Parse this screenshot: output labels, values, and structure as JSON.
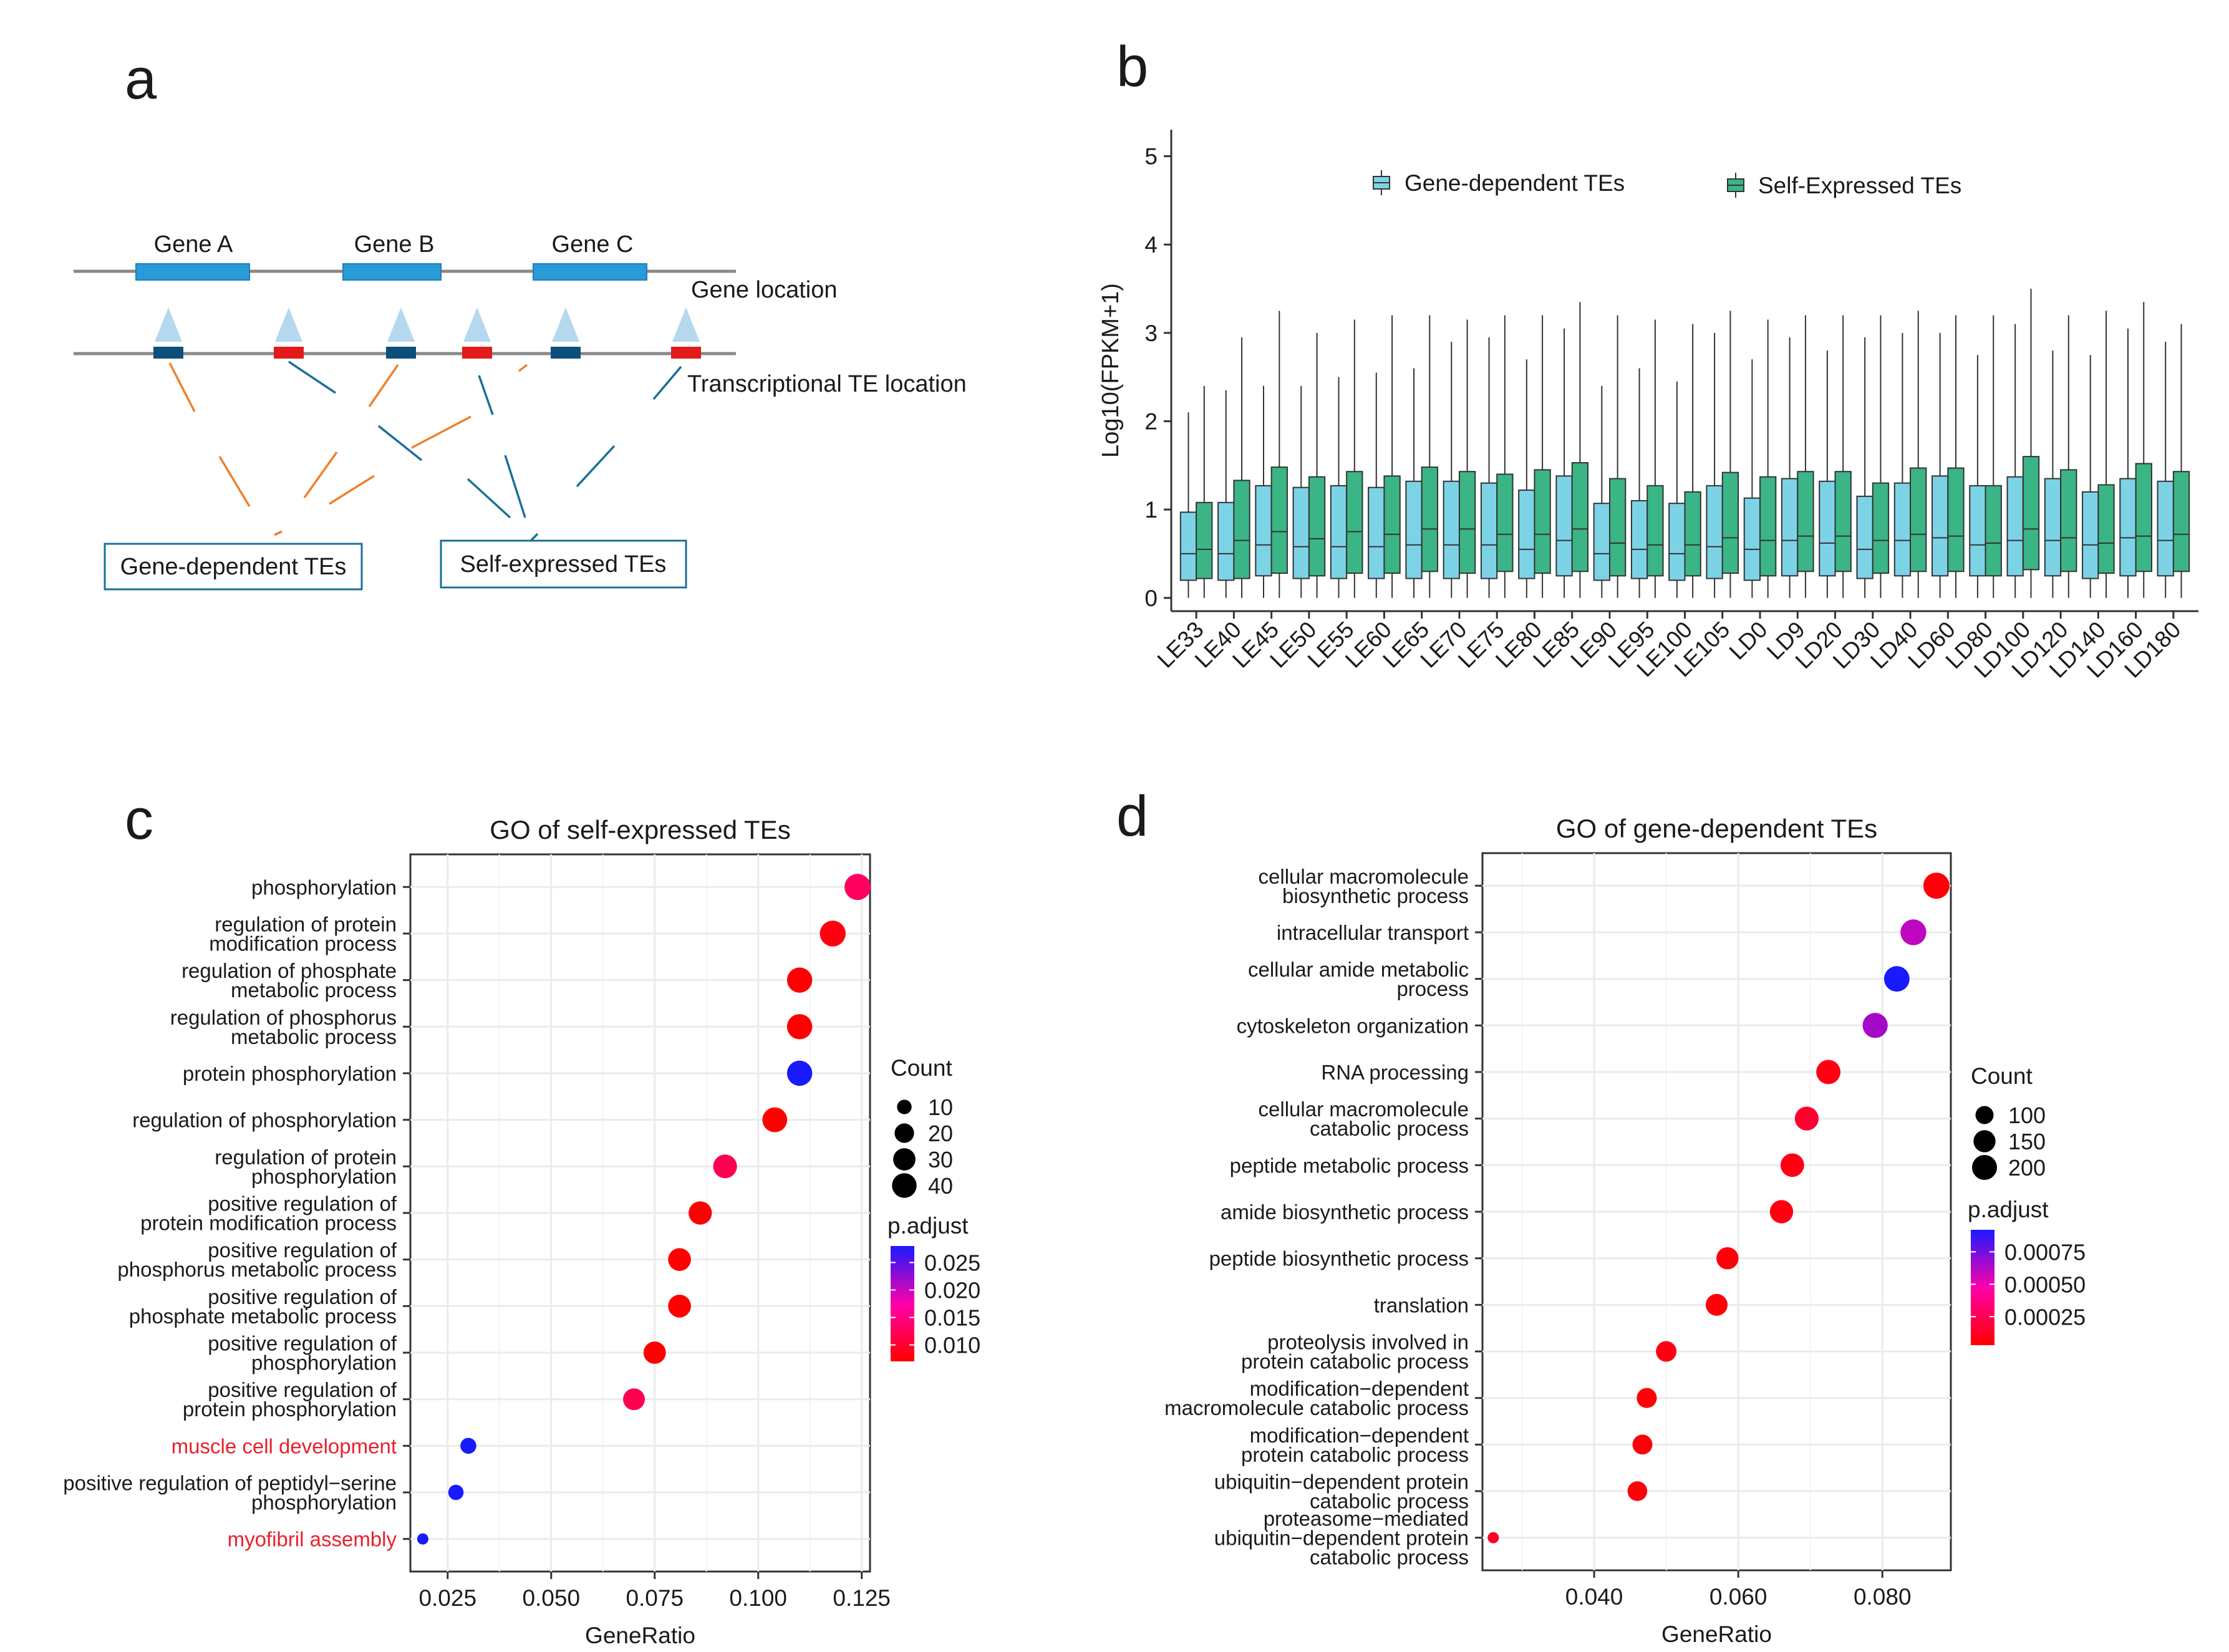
{
  "panel_labels": {
    "a": "a",
    "b": "b",
    "c": "c",
    "d": "d"
  },
  "colors": {
    "gene_box": "#2a9ad8",
    "te_blue": "#0b4f7a",
    "te_red": "#e21a1a",
    "triangle": "#b6d8ef",
    "orange_link": "#f07f2a",
    "blue_link": "#1a6f9a",
    "box_gene_dependent": "#7dd3e6",
    "box_self_expressed": "#3bb585",
    "red": "#ff0000",
    "blue": "#0000ff",
    "grid": "#ebebeb",
    "highlight_text": "#e8212c"
  },
  "diagram": {
    "genes": [
      "Gene A",
      "Gene B",
      "Gene C"
    ],
    "gene_location_label": "Gene location",
    "te_location_label": "Transcriptional TE location",
    "te_sites": [
      "blue",
      "red",
      "blue",
      "red",
      "blue",
      "red"
    ],
    "box_gene_dependent": "Gene-dependent TEs",
    "box_self_expressed": "Self-expressed TEs"
  },
  "chart_data": [
    {
      "id": "b",
      "type": "box",
      "title": "",
      "xlabel": "",
      "ylabel": "Log10(FPKM+1)",
      "ylim": [
        -0.15,
        5.3
      ],
      "yticks": [
        0,
        1,
        2,
        3,
        4,
        5
      ],
      "legend": [
        "Gene-dependent TEs",
        "Self-Expressed TEs"
      ],
      "categories": [
        "LE33",
        "LE40",
        "LE45",
        "LE50",
        "LE55",
        "LE60",
        "LE65",
        "LE70",
        "LE75",
        "LE80",
        "LE85",
        "LE90",
        "LE95",
        "LE100",
        "LE105",
        "LD0",
        "LD9",
        "LD20",
        "LD30",
        "LD40",
        "LD60",
        "LD80",
        "LD100",
        "LD120",
        "LD140",
        "LD160",
        "LD180"
      ],
      "series": [
        {
          "name": "Gene-dependent TEs",
          "q1": [
            0.2,
            0.2,
            0.25,
            0.22,
            0.22,
            0.22,
            0.22,
            0.22,
            0.22,
            0.22,
            0.25,
            0.2,
            0.22,
            0.2,
            0.22,
            0.2,
            0.25,
            0.25,
            0.22,
            0.25,
            0.25,
            0.25,
            0.25,
            0.25,
            0.22,
            0.25,
            0.25
          ],
          "median": [
            0.5,
            0.5,
            0.6,
            0.58,
            0.58,
            0.58,
            0.6,
            0.6,
            0.6,
            0.55,
            0.65,
            0.5,
            0.55,
            0.5,
            0.58,
            0.55,
            0.65,
            0.62,
            0.55,
            0.65,
            0.68,
            0.6,
            0.65,
            0.65,
            0.6,
            0.68,
            0.65
          ],
          "q3": [
            0.97,
            1.08,
            1.27,
            1.25,
            1.27,
            1.25,
            1.32,
            1.32,
            1.3,
            1.22,
            1.38,
            1.07,
            1.1,
            1.07,
            1.27,
            1.13,
            1.35,
            1.32,
            1.15,
            1.3,
            1.38,
            1.27,
            1.37,
            1.35,
            1.2,
            1.35,
            1.32
          ],
          "whisker_max": [
            2.1,
            2.35,
            2.4,
            2.4,
            2.5,
            2.55,
            2.6,
            2.9,
            2.95,
            2.7,
            3.05,
            2.4,
            2.6,
            2.45,
            3.0,
            2.7,
            2.95,
            2.8,
            2.95,
            3.0,
            3.0,
            2.75,
            3.1,
            2.8,
            2.75,
            3.05,
            2.9
          ]
        },
        {
          "name": "Self-Expressed TEs",
          "q1": [
            0.22,
            0.22,
            0.28,
            0.25,
            0.28,
            0.28,
            0.3,
            0.28,
            0.3,
            0.28,
            0.3,
            0.25,
            0.25,
            0.25,
            0.28,
            0.25,
            0.3,
            0.3,
            0.28,
            0.3,
            0.3,
            0.25,
            0.32,
            0.3,
            0.28,
            0.3,
            0.3
          ],
          "median": [
            0.55,
            0.65,
            0.75,
            0.67,
            0.75,
            0.72,
            0.78,
            0.78,
            0.72,
            0.72,
            0.78,
            0.62,
            0.6,
            0.6,
            0.68,
            0.65,
            0.7,
            0.7,
            0.65,
            0.72,
            0.7,
            0.62,
            0.78,
            0.68,
            0.62,
            0.7,
            0.72
          ],
          "q3": [
            1.08,
            1.33,
            1.48,
            1.37,
            1.43,
            1.38,
            1.48,
            1.43,
            1.4,
            1.45,
            1.53,
            1.35,
            1.27,
            1.2,
            1.42,
            1.37,
            1.43,
            1.43,
            1.3,
            1.47,
            1.47,
            1.27,
            1.6,
            1.45,
            1.28,
            1.52,
            1.43
          ],
          "whisker_max": [
            2.4,
            2.95,
            3.25,
            3.0,
            3.15,
            3.2,
            3.2,
            3.15,
            3.2,
            3.2,
            3.35,
            3.2,
            3.15,
            3.1,
            3.25,
            3.15,
            3.2,
            3.2,
            3.2,
            3.25,
            3.2,
            3.2,
            3.5,
            3.2,
            3.25,
            3.35,
            3.1
          ]
        }
      ]
    },
    {
      "id": "c",
      "type": "scatter",
      "title": "GO of self-expressed TEs",
      "xlabel": "GeneRatio",
      "ylabel": "",
      "xlim": [
        0.016,
        0.127
      ],
      "xticks": [
        0.025,
        0.05,
        0.075,
        0.1,
        0.125
      ],
      "xtick_labels": [
        "0.025",
        "0.050",
        "0.075",
        "0.100",
        "0.125"
      ],
      "terms": [
        "phosphorylation",
        "regulation of protein\nmodification process",
        "regulation of phosphate\nmetabolic process",
        "regulation of phosphorus\nmetabolic process",
        "protein phosphorylation",
        "regulation of phosphorylation",
        "regulation of protein\nphosphorylation",
        "positive regulation of\nprotein modification process",
        "positive regulation of\nphosphorus metabolic process",
        "positive regulation of\nphosphate metabolic process",
        "positive regulation of\nphosphorylation",
        "positive regulation of\nprotein phosphorylation",
        "muscle cell development",
        "positive regulation of peptidyl−serine\nphosphorylation",
        "myofibril assembly"
      ],
      "highlight_terms": [
        12,
        14
      ],
      "gene_ratio": [
        0.124,
        0.118,
        0.11,
        0.11,
        0.11,
        0.104,
        0.092,
        0.086,
        0.081,
        0.081,
        0.075,
        0.07,
        0.03,
        0.027,
        0.019
      ],
      "count": [
        48,
        46,
        43,
        43,
        43,
        41,
        36,
        34,
        32,
        32,
        30,
        28,
        12,
        11,
        8
      ],
      "p_adjust": [
        0.013,
        0.008,
        0.007,
        0.007,
        0.028,
        0.007,
        0.012,
        0.007,
        0.007,
        0.007,
        0.007,
        0.012,
        0.028,
        0.028,
        0.028
      ],
      "size_legend": {
        "title": "Count",
        "values": [
          10,
          20,
          30,
          40
        ]
      },
      "color_legend": {
        "title": "p.adjust",
        "range": [
          0.007,
          0.028
        ],
        "ticks": [
          0.025,
          0.02,
          0.015,
          0.01
        ],
        "tick_labels": [
          "0.025",
          "0.020",
          "0.015",
          "0.010"
        ]
      }
    },
    {
      "id": "d",
      "type": "scatter",
      "title": "GO of gene-dependent TEs",
      "xlabel": "GeneRatio",
      "ylabel": "",
      "xlim": [
        0.0245,
        0.0895
      ],
      "xticks": [
        0.04,
        0.06,
        0.08
      ],
      "xtick_labels": [
        "0.040",
        "0.060",
        "0.080"
      ],
      "terms": [
        "cellular macromolecule\nbiosynthetic process",
        "intracellular transport",
        "cellular amide metabolic\nprocess",
        "cytoskeleton organization",
        "RNA processing",
        "cellular macromolecule\ncatabolic process",
        "peptide metabolic process",
        "amide biosynthetic process",
        "peptide biosynthetic process",
        "translation",
        "proteolysis involved in\nprotein catabolic process",
        "modification−dependent\nmacromolecule catabolic process",
        "modification−dependent\nprotein catabolic process",
        "ubiquitin−dependent protein\ncatabolic process",
        "proteasome−mediated\nubiquitin−dependent protein\ncatabolic process"
      ],
      "highlight_terms": [],
      "gene_ratio": [
        0.0875,
        0.0843,
        0.082,
        0.079,
        0.0725,
        0.0695,
        0.0675,
        0.066,
        0.0585,
        0.057,
        0.05,
        0.0473,
        0.0467,
        0.046,
        0.026
      ],
      "count": [
        225,
        217,
        211,
        203,
        187,
        179,
        174,
        170,
        151,
        147,
        129,
        122,
        120,
        118,
        67
      ],
      "p_adjust": [
        5e-05,
        0.0006,
        0.00092,
        0.00065,
        8e-05,
        0.00015,
        8e-05,
        8e-05,
        5e-05,
        5e-05,
        8e-05,
        5e-05,
        5e-05,
        5e-05,
        0.00012
      ],
      "size_legend": {
        "title": "Count",
        "values": [
          100,
          150,
          200
        ]
      },
      "color_legend": {
        "title": "p.adjust",
        "range": [
          3e-05,
          0.00092
        ],
        "ticks": [
          0.00075,
          0.0005,
          0.00025
        ],
        "tick_labels": [
          "0.00075",
          "0.00050",
          "0.00025"
        ]
      }
    }
  ]
}
